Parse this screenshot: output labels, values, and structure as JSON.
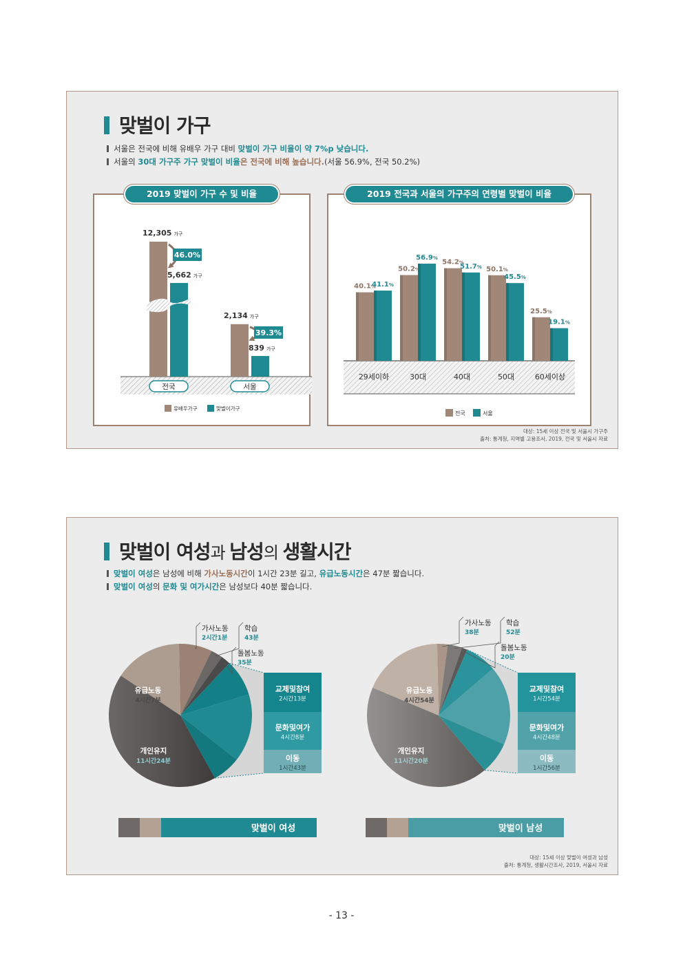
{
  "page_number": "- 13 -",
  "panel1": {
    "title": "맞벌이 가구",
    "bullet1": {
      "a": "서울은 전국에 비해 유배우 가구 대비 ",
      "b": "맞벌이 가구 비율이 약 7%p 낮습니다."
    },
    "bullet2": {
      "a": "서울의 ",
      "b": "30대 가구주 가구 맞벌이 비율",
      "c": "은 전국에 비해 높습니다.",
      "d": "(서울 56.9%, 전국 50.2%)"
    },
    "note_line1": "대상: 15세 이상 전국 및 서울시 가구주",
    "note_line2": "출처: 통계청, 지역별 고용조사, 2019, 전국 및 서울시 자료"
  },
  "panel2": {
    "title_a": "맞벌이 여성",
    "title_b": "과 ",
    "title_c": "남성",
    "title_d": "의 ",
    "title_e": "생활시간",
    "bullet1": {
      "a": "맞벌이 여성",
      "b": "은 남성에 비해 ",
      "c": "가사노동시간",
      "d": "이 1시간 23분 길고, ",
      "e": "유급노동시간",
      "f": "은 47분 짧습니다."
    },
    "bullet2": {
      "a": "맞벌이 여성",
      "b": "의 ",
      "c": "문화 및 여가시간",
      "d": "은 남성보다 40분 짧습니다."
    },
    "note_line1": "대상: 15세 이상 맞벌이 여성과 남성",
    "note_line2": "출처: 통계청, 생활시간조사, 2019, 서울시 자료"
  },
  "colors": {
    "brown": "#a08777",
    "teal": "#1f8a92",
    "dark": "#5f5a57"
  },
  "chart_data": [
    {
      "type": "bar",
      "title": "2019 맞벌이 가구 수 및 비율",
      "categories": [
        "전국",
        "서울"
      ],
      "series": [
        {
          "name": "유배우가구",
          "values": [
            12305,
            2134
          ],
          "labels": [
            "12,305",
            "2,134"
          ]
        },
        {
          "name": "맞벌이가구",
          "values": [
            5662,
            839
          ],
          "labels": [
            "5,662",
            "839"
          ]
        }
      ],
      "unit": "가구",
      "ratios": [
        "46.0%",
        "39.3%"
      ],
      "axis_break": true
    },
    {
      "type": "bar",
      "title": "2019 전국과 서울의 가구주의 연령별 맞벌이 비율",
      "categories": [
        "29세이하",
        "30대",
        "40대",
        "50대",
        "60세이상"
      ],
      "series": [
        {
          "name": "전국",
          "values": [
            40.1,
            50.2,
            54.2,
            50.1,
            25.5
          ]
        },
        {
          "name": "서울",
          "values": [
            41.1,
            56.9,
            51.7,
            45.5,
            19.1
          ]
        }
      ],
      "value_suffix": "%"
    },
    {
      "type": "pie",
      "title": "맞벌이 여성",
      "slices": [
        {
          "name": "유급노동",
          "label": "4시간7분",
          "minutes": 247
        },
        {
          "name": "가사노동",
          "label": "2시간1분",
          "minutes": 121
        },
        {
          "name": "학습",
          "label": "43분",
          "minutes": 43
        },
        {
          "name": "돌봄노동",
          "label": "35분",
          "minutes": 35
        },
        {
          "name": "교제및참여",
          "label": "2시간13분",
          "minutes": 133
        },
        {
          "name": "문화및여가",
          "label": "4시간8분",
          "minutes": 248
        },
        {
          "name": "이동",
          "label": "1시간43분",
          "minutes": 103
        },
        {
          "name": "개인유지",
          "label": "11시간24분",
          "minutes": 684
        }
      ]
    },
    {
      "type": "pie",
      "title": "맞벌이 남성",
      "slices": [
        {
          "name": "유급노동",
          "label": "4시간54분",
          "minutes": 294
        },
        {
          "name": "가사노동",
          "label": "38분",
          "minutes": 38
        },
        {
          "name": "학습",
          "label": "52분",
          "minutes": 52
        },
        {
          "name": "돌봄노동",
          "label": "20분",
          "minutes": 20
        },
        {
          "name": "교제및참여",
          "label": "1시간54분",
          "minutes": 114
        },
        {
          "name": "문화및여가",
          "label": "4시간48분",
          "minutes": 288
        },
        {
          "name": "이동",
          "label": "1시간56분",
          "minutes": 116
        },
        {
          "name": "개인유지",
          "label": "11시간20분",
          "minutes": 680
        }
      ]
    }
  ]
}
